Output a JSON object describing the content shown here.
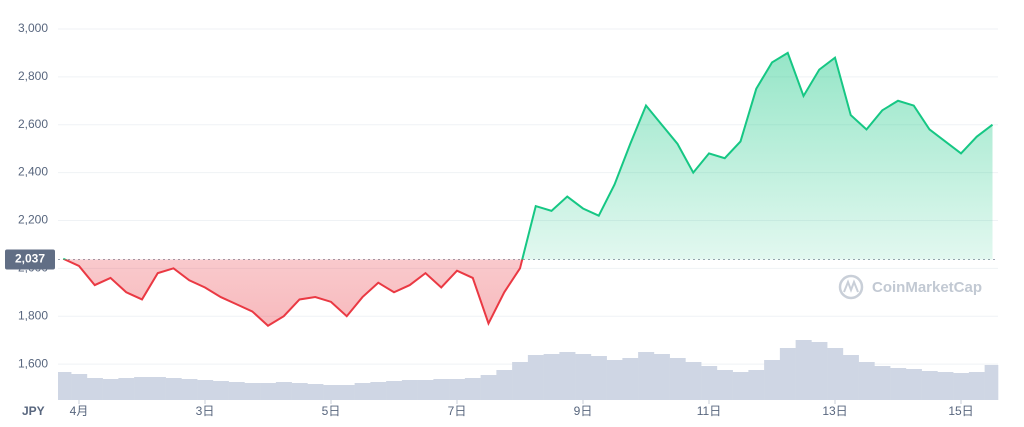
{
  "chart_data": {
    "type": "line",
    "currency": "JPY",
    "watermark": "CoinMarketCap",
    "categories": [
      null,
      "4月",
      null,
      null,
      null,
      null,
      null,
      null,
      null,
      "3日",
      null,
      null,
      null,
      null,
      null,
      null,
      null,
      "5日",
      null,
      null,
      null,
      null,
      null,
      null,
      null,
      "7日",
      null,
      null,
      null,
      null,
      null,
      null,
      null,
      "9日",
      null,
      null,
      null,
      null,
      null,
      null,
      null,
      "11日",
      null,
      null,
      null,
      null,
      null,
      null,
      null,
      "13日",
      null,
      null,
      null,
      null,
      null,
      null,
      null,
      "15日",
      null,
      null
    ],
    "values": [
      2040,
      2010,
      1930,
      1960,
      1900,
      1870,
      1980,
      2000,
      1950,
      1920,
      1880,
      1850,
      1820,
      1760,
      1800,
      1870,
      1880,
      1860,
      1800,
      1880,
      1940,
      1900,
      1930,
      1980,
      1920,
      1990,
      1960,
      1770,
      1900,
      2000,
      2260,
      2240,
      2300,
      2250,
      2220,
      2350,
      2520,
      2680,
      2600,
      2520,
      2400,
      2480,
      2460,
      2530,
      2750,
      2860,
      2900,
      2720,
      2830,
      2880,
      2640,
      2580,
      2660,
      2700,
      2680,
      2580,
      2530,
      2480,
      2550,
      2600
    ],
    "volume": [
      28,
      26,
      22,
      21,
      22,
      23,
      23,
      22,
      21,
      20,
      19,
      18,
      17,
      17,
      18,
      17,
      16,
      15,
      15,
      17,
      18,
      19,
      20,
      20,
      21,
      21,
      22,
      25,
      30,
      38,
      45,
      46,
      48,
      46,
      44,
      40,
      42,
      48,
      46,
      42,
      38,
      34,
      30,
      28,
      30,
      40,
      52,
      60,
      58,
      52,
      45,
      38,
      34,
      32,
      31,
      29,
      28,
      27,
      28,
      35
    ],
    "up_color": "#16c784",
    "down_color": "#ea3943",
    "volume_color": "#cfd6e4",
    "reference": {
      "value": 2037,
      "label": "2,037"
    },
    "ylim": [
      1450,
      3100
    ],
    "yticks": [
      {
        "value": 1600,
        "label": "1,600"
      },
      {
        "value": 1800,
        "label": "1,800"
      },
      {
        "value": 2000,
        "label": "2,000"
      },
      {
        "value": 2200,
        "label": "2,200"
      },
      {
        "value": 2400,
        "label": "2,400"
      },
      {
        "value": 2600,
        "label": "2,600"
      },
      {
        "value": 2800,
        "label": "2,800"
      },
      {
        "value": 3000,
        "label": "3,000"
      }
    ],
    "grid": true
  }
}
